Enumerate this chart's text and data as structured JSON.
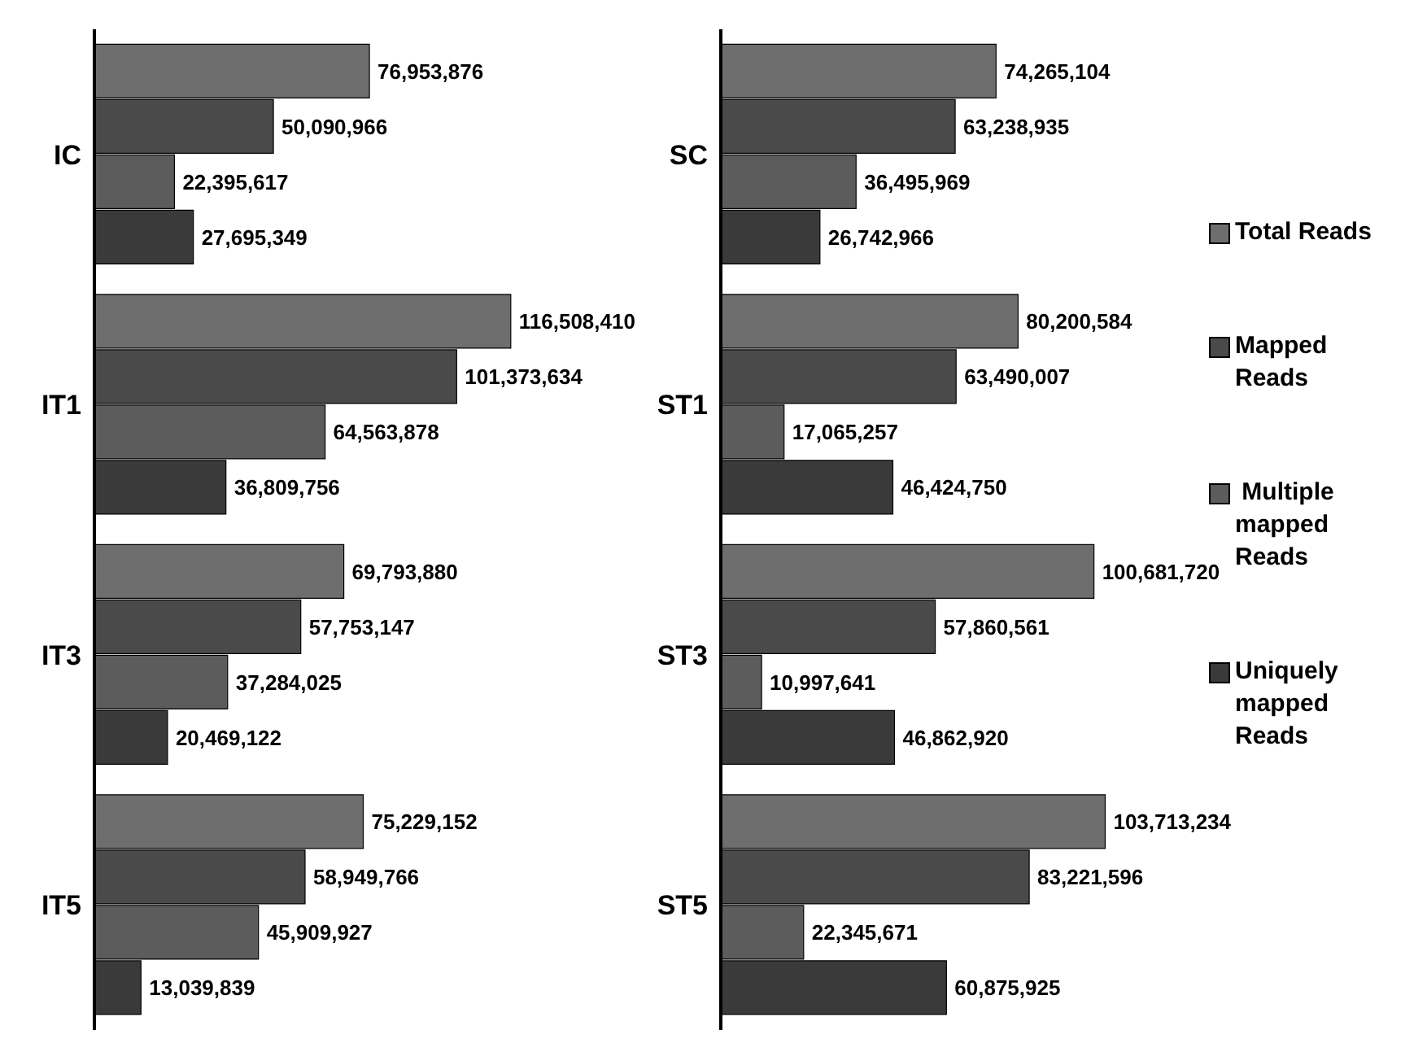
{
  "chart_data": [
    {
      "type": "bar",
      "orientation": "horizontal",
      "categories": [
        "IC",
        "IT1",
        "IT3",
        "IT5"
      ],
      "tick_labels": "y",
      "series": [
        {
          "color": "#6e6e6e",
          "values": [
            76953876,
            116508410,
            69793880,
            75229152
          ],
          "value_labels": [
            "76,953,876",
            "116,508,410",
            "69,793,880",
            "75,229,152"
          ]
        },
        {
          "color": "#4a4a4a",
          "values": [
            50090966,
            101373634,
            57753147,
            58949766
          ],
          "value_labels": [
            "50,090,966",
            "101,373,634",
            "57,753,147",
            "58,949,766"
          ]
        },
        {
          "color": "#5c5c5c",
          "values": [
            22395617,
            64563878,
            37284025,
            45909927
          ],
          "value_labels": [
            "22,395,617",
            "64,563,878",
            "37,284,025",
            "45,909,927"
          ]
        },
        {
          "color": "#3a3a3a",
          "values": [
            27695349,
            36809756,
            20469122,
            13039839
          ],
          "value_labels": [
            "27,695,349",
            "36,809,756",
            "20,469,122",
            "13,039,839"
          ]
        }
      ]
    },
    {
      "type": "bar",
      "orientation": "horizontal",
      "categories": [
        "SC",
        "ST1",
        "ST3",
        "ST5"
      ],
      "tick_labels": "y",
      "legend": "right",
      "series": [
        {
          "name": "Total Reads",
          "color": "#6e6e6e",
          "values": [
            74265104,
            80200584,
            100681720,
            103713234
          ],
          "value_labels": [
            "74,265,104",
            "80,200,584",
            "100,681,720",
            "103,713,234"
          ]
        },
        {
          "name": "Mapped Reads",
          "color": "#4a4a4a",
          "values": [
            63238935,
            63490007,
            57860561,
            83221596
          ],
          "value_labels": [
            "63,238,935",
            "63,490,007",
            "57,860,561",
            "83,221,596"
          ]
        },
        {
          "name": " Multiple mapped Reads",
          "color": "#5c5c5c",
          "values": [
            36495969,
            17065257,
            10997641,
            22345671
          ],
          "value_labels": [
            "36,495,969",
            "17,065,257",
            "10,997,641",
            "22,345,671"
          ]
        },
        {
          "name": "Uniquely mapped Reads",
          "color": "#3a3a3a",
          "values": [
            26742966,
            46424750,
            46862920,
            60875925
          ],
          "value_labels": [
            "26,742,966",
            "46,424,750",
            "46,862,920",
            "60,875,925"
          ]
        }
      ]
    }
  ]
}
